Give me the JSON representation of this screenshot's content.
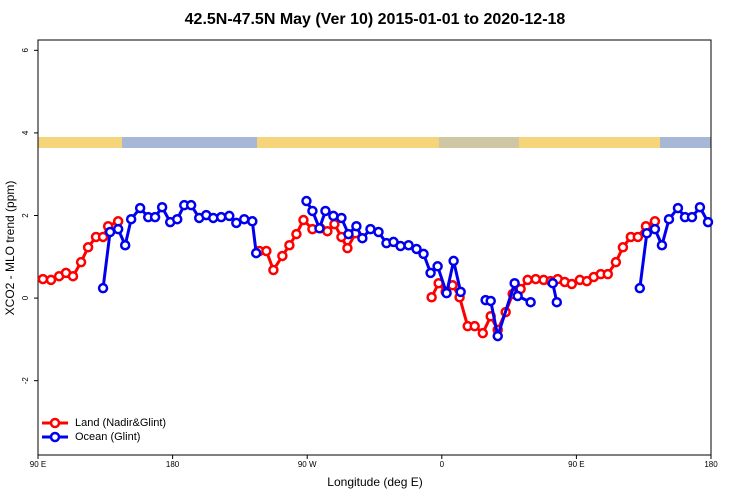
{
  "chart_data": {
    "type": "line",
    "title": "42.5N-47.5N May (Ver 10)   2015-01-01 to 2020-12-18",
    "x_label": "Longitude (deg E)",
    "y_label": "XCO2 - MLO trend (ppm)",
    "xlim": [
      90,
      540
    ],
    "ylim": [
      -3.8,
      6.25
    ],
    "xticks": [
      {
        "value": 90,
        "label": "90 E"
      },
      {
        "value": 180,
        "label": "180"
      },
      {
        "value": 270,
        "label": "90 W"
      },
      {
        "value": 360,
        "label": "0"
      },
      {
        "value": 450,
        "label": "90 E"
      },
      {
        "value": 540,
        "label": "180"
      }
    ],
    "yticks": [
      -2,
      0,
      2,
      4,
      6
    ],
    "legend": "bottom-left",
    "series": [
      {
        "name": "Land (Nadir&Glint)",
        "color": "#ff0000",
        "x": [
          93.3,
          98.7,
          104.1,
          108.7,
          113.4,
          118.8,
          123.5,
          128.8,
          133.5,
          136.9,
          143.6,
          null,
          238.0,
          242.7,
          247.4,
          253.4,
          258.1,
          262.8,
          267.5,
          273.5,
          278.8,
          283.5,
          288.2,
          292.9,
          296.9,
          302.3,
          null,
          353.2,
          357.9,
          362.6,
          367.2,
          371.9,
          377.3,
          382.0,
          387.4,
          392.7,
          397.4,
          402.7,
          407.4,
          412.7,
          417.4,
          422.8,
          428.1,
          432.8,
          437.5,
          442.2,
          446.9,
          452.3,
          457.0,
          461.6,
          466.3,
          471.0,
          476.4,
          481.1,
          486.4,
          491.1,
          496.5,
          502.5
        ],
        "values": [
          0.46,
          0.44,
          0.53,
          0.61,
          0.53,
          0.87,
          1.23,
          1.48,
          1.48,
          1.74,
          1.86,
          null,
          1.14,
          1.14,
          0.68,
          1.02,
          1.28,
          1.55,
          1.89,
          1.67,
          1.69,
          1.62,
          1.79,
          1.48,
          1.21,
          1.57,
          null,
          0.02,
          0.36,
          0.15,
          0.31,
          0.02,
          -0.68,
          -0.68,
          -0.85,
          -0.44,
          -0.77,
          -0.34,
          0.1,
          0.22,
          0.44,
          0.46,
          0.44,
          0.41,
          0.46,
          0.39,
          0.34,
          0.44,
          0.41,
          0.51,
          0.58,
          0.58,
          0.87,
          1.23,
          1.48,
          1.48,
          1.74,
          1.86
        ]
      },
      {
        "name": "Ocean (Glint)",
        "color": "#0000ee",
        "x": [
          133.5,
          138.2,
          143.6,
          148.3,
          152.3,
          158.3,
          163.7,
          168.3,
          173.0,
          178.4,
          183.1,
          187.8,
          192.4,
          197.8,
          202.5,
          207.2,
          212.5,
          217.9,
          222.6,
          227.9,
          233.3,
          235.9,
          null,
          269.5,
          273.5,
          278.2,
          282.2,
          287.5,
          292.9,
          297.6,
          302.9,
          306.9,
          312.3,
          317.7,
          323.0,
          327.7,
          332.4,
          337.8,
          343.1,
          347.8,
          352.5,
          357.2,
          363.2,
          367.9,
          372.6,
          null,
          389.3,
          392.7,
          397.4,
          408.7,
          410.7,
          419.4,
          null,
          434.2,
          436.9,
          null,
          492.4,
          497.1,
          502.5,
          507.2,
          511.9,
          517.9,
          522.6,
          527.3,
          532.6,
          538.0
        ],
        "values": [
          0.24,
          1.6,
          1.67,
          1.28,
          1.91,
          2.18,
          1.96,
          1.96,
          2.2,
          1.84,
          1.91,
          2.25,
          2.25,
          1.94,
          2.01,
          1.94,
          1.96,
          1.99,
          1.82,
          1.91,
          1.86,
          1.09,
          null,
          2.35,
          2.11,
          1.69,
          2.11,
          1.99,
          1.94,
          1.55,
          1.74,
          1.45,
          1.67,
          1.6,
          1.33,
          1.36,
          1.26,
          1.28,
          1.19,
          1.07,
          0.61,
          0.77,
          0.12,
          0.9,
          0.15,
          null,
          -0.05,
          -0.07,
          -0.92,
          0.36,
          0.05,
          -0.1,
          null,
          0.36,
          -0.1,
          null,
          0.24,
          1.57,
          1.67,
          1.28,
          1.91,
          2.18,
          1.96,
          1.96,
          2.2,
          1.84
        ]
      }
    ]
  }
}
